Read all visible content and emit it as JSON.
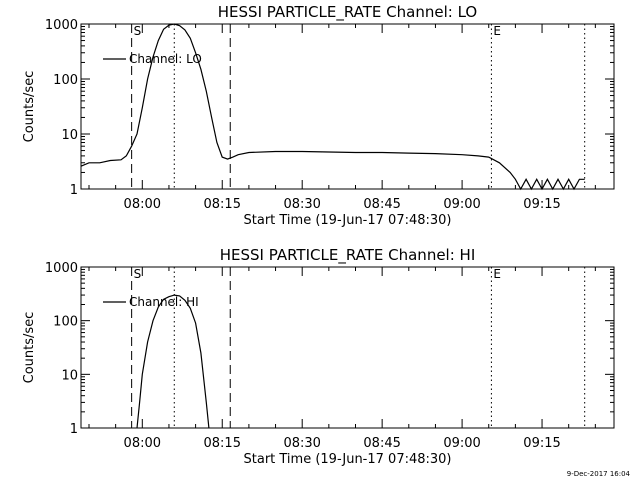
{
  "footer": "9-Dec-2017 16:04",
  "chart_data": [
    {
      "type": "line",
      "title": "HESSI PARTICLE_RATE Channel: LO",
      "xlabel": "Start Time (19-Jun-17 07:48:30)",
      "ylabel": "Counts/sec",
      "yscale": "log",
      "xlim": [
        "07:48:30",
        "09:28:30"
      ],
      "ylim": [
        1,
        1000
      ],
      "xticks": [
        "08:00",
        "08:15",
        "08:30",
        "08:45",
        "09:00",
        "09:15"
      ],
      "yticks": [
        "1",
        "10",
        "100",
        "1000"
      ],
      "legend": {
        "entries": [
          "Channel: LO"
        ],
        "position": "upper-left"
      },
      "markers": [
        {
          "time": "07:58:00",
          "style": "dashed",
          "label": "S"
        },
        {
          "time": "08:16:30",
          "style": "dashed",
          "label": ""
        },
        {
          "time": "08:06:00",
          "style": "dotted",
          "label": ""
        },
        {
          "time": "09:05:30",
          "style": "dotted",
          "label": "E"
        },
        {
          "time": "09:23:00",
          "style": "dotted",
          "label": ""
        }
      ],
      "series": [
        {
          "name": "Channel: LO",
          "x": [
            "07:48:30",
            "07:50:00",
            "07:52:00",
            "07:54:00",
            "07:56:00",
            "07:57:00",
            "07:58:00",
            "07:59:00",
            "08:00:00",
            "08:01:00",
            "08:02:00",
            "08:03:00",
            "08:04:00",
            "08:05:00",
            "08:06:00",
            "08:07:00",
            "08:08:00",
            "08:09:00",
            "08:10:00",
            "08:11:00",
            "08:12:00",
            "08:13:00",
            "08:14:00",
            "08:15:00",
            "08:16:00",
            "08:17:00",
            "08:18:00",
            "08:20:00",
            "08:25:00",
            "08:30:00",
            "08:35:00",
            "08:40:00",
            "08:45:00",
            "08:50:00",
            "08:55:00",
            "09:00:00",
            "09:03:00",
            "09:05:00",
            "09:07:00",
            "09:09:00",
            "09:10:00",
            "09:11:00",
            "09:12:00",
            "09:13:00",
            "09:14:00",
            "09:15:00",
            "09:16:00",
            "09:17:00",
            "09:18:00",
            "09:19:00",
            "09:20:00",
            "09:21:00",
            "09:22:00",
            "09:23:00"
          ],
          "values": [
            2.6,
            3.0,
            3.0,
            3.3,
            3.4,
            4.0,
            6,
            10,
            30,
            100,
            250,
            500,
            800,
            950,
            1000,
            930,
            780,
            550,
            300,
            150,
            60,
            20,
            7,
            3.8,
            3.5,
            3.8,
            4.2,
            4.6,
            4.8,
            4.8,
            4.7,
            4.6,
            4.6,
            4.5,
            4.4,
            4.2,
            4.0,
            3.8,
            3.0,
            2.0,
            1.5,
            1.0,
            1.5,
            1.0,
            1.5,
            1.0,
            1.5,
            1.0,
            1.5,
            1.0,
            1.5,
            1.0,
            1.5,
            1.5
          ]
        }
      ]
    },
    {
      "type": "line",
      "title": "HESSI PARTICLE_RATE Channel: HI",
      "xlabel": "Start Time (19-Jun-17 07:48:30)",
      "ylabel": "Counts/sec",
      "yscale": "log",
      "xlim": [
        "07:48:30",
        "09:28:30"
      ],
      "ylim": [
        1,
        1000
      ],
      "xticks": [
        "08:00",
        "08:15",
        "08:30",
        "08:45",
        "09:00",
        "09:15"
      ],
      "yticks": [
        "1",
        "10",
        "100",
        "1000"
      ],
      "legend": {
        "entries": [
          "Channel: HI"
        ],
        "position": "upper-left"
      },
      "markers": [
        {
          "time": "07:58:00",
          "style": "dashed",
          "label": "S"
        },
        {
          "time": "08:16:30",
          "style": "dashed",
          "label": ""
        },
        {
          "time": "08:06:00",
          "style": "dotted",
          "label": ""
        },
        {
          "time": "09:05:30",
          "style": "dotted",
          "label": "E"
        },
        {
          "time": "09:23:00",
          "style": "dotted",
          "label": ""
        }
      ],
      "series": [
        {
          "name": "Channel: HI",
          "x": [
            "07:59:00",
            "07:59:30",
            "08:00:00",
            "08:01:00",
            "08:02:00",
            "08:03:00",
            "08:04:00",
            "08:05:00",
            "08:06:00",
            "08:07:00",
            "08:08:00",
            "08:09:00",
            "08:10:00",
            "08:11:00",
            "08:12:00",
            "08:12:30"
          ],
          "values": [
            1,
            3,
            10,
            40,
            100,
            180,
            250,
            280,
            300,
            290,
            240,
            170,
            90,
            25,
            3,
            1
          ]
        }
      ]
    }
  ]
}
